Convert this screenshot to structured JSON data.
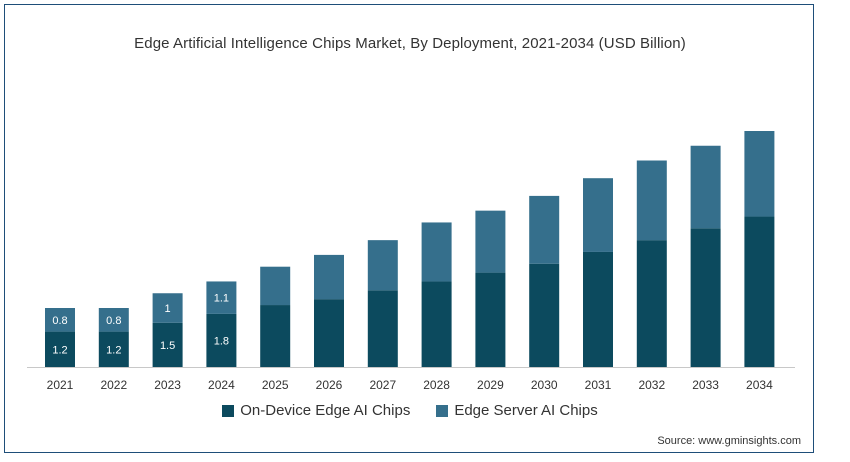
{
  "chart_data": {
    "type": "bar",
    "stacked": true,
    "title": "Edge Artificial Intelligence Chips Market, By Deployment, 2021-2034 (USD Billion)",
    "categories": [
      "2021",
      "2022",
      "2023",
      "2024",
      "2025",
      "2026",
      "2027",
      "2028",
      "2029",
      "2030",
      "2031",
      "2032",
      "2033",
      "2034"
    ],
    "series": [
      {
        "name": "On-Device Edge AI Chips",
        "color": "#0c4a5e",
        "values": [
          1.2,
          1.2,
          1.5,
          1.8,
          2.1,
          2.3,
          2.6,
          2.9,
          3.2,
          3.5,
          3.9,
          4.3,
          4.7,
          5.1
        ],
        "labels": [
          "1.2",
          "1.2",
          "1.5",
          "1.8",
          null,
          null,
          null,
          null,
          null,
          null,
          null,
          null,
          null,
          null
        ]
      },
      {
        "name": "Edge Server AI Chips",
        "color": "#356f8c",
        "values": [
          0.8,
          0.8,
          1.0,
          1.1,
          1.3,
          1.5,
          1.7,
          2.0,
          2.1,
          2.3,
          2.5,
          2.7,
          2.8,
          2.9
        ],
        "labels": [
          "0.8",
          "0.8",
          "1",
          "1.1",
          null,
          null,
          null,
          null,
          null,
          null,
          null,
          null,
          null,
          null
        ]
      }
    ],
    "ylim": [
      0,
      8.5
    ],
    "grid": false,
    "legend": "bottom-center"
  },
  "source": "Source: www.gminsights.com"
}
